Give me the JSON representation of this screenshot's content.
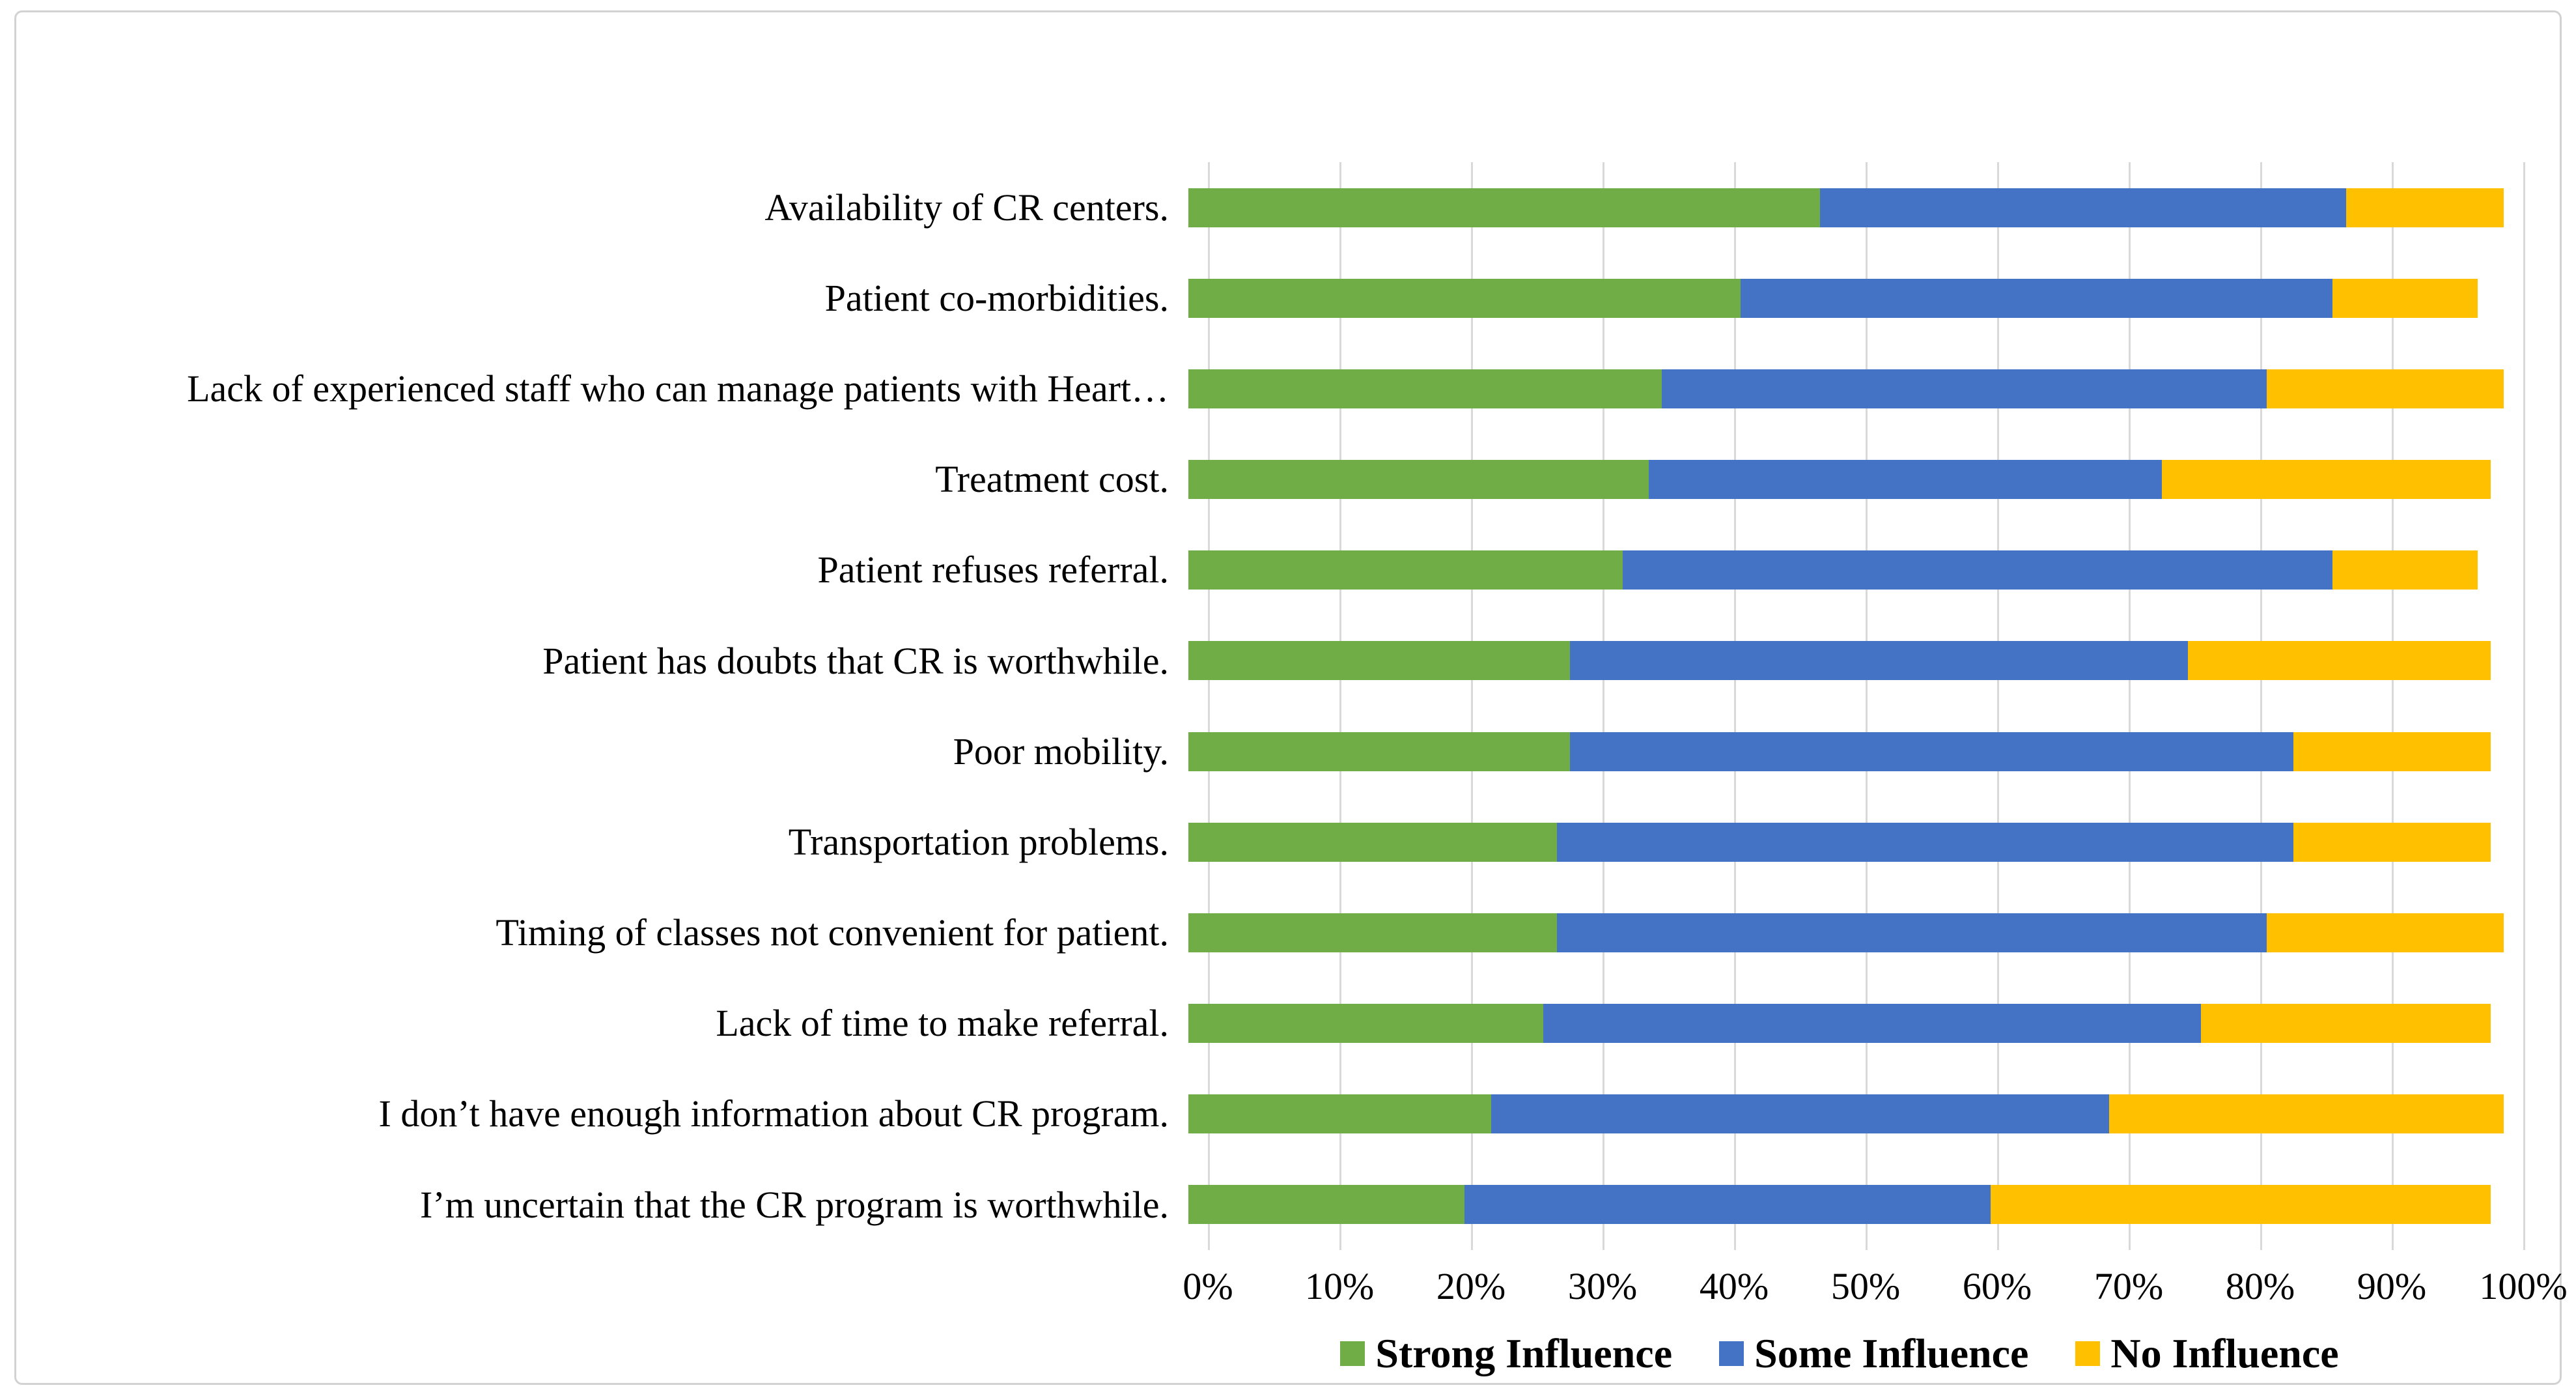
{
  "figure": {
    "background": "#ffffff",
    "border_color": "#d2d2d2"
  },
  "chart_data": {
    "type": "bar",
    "orientation": "horizontal",
    "stacked": true,
    "title": "",
    "xlabel": "",
    "ylabel": "",
    "categories": [
      "Availability of CR centers.",
      "Patient co-morbidities.",
      "Lack of experienced staff who can manage patients with Heart…",
      "Treatment cost.",
      "Patient refuses referral.",
      "Patient has doubts that CR is worthwhile.",
      "Poor mobility.",
      "Transportation problems.",
      "Timing of classes not convenient for patient.",
      "Lack of time to make referral.",
      "I don’t have enough information about CR program.",
      "I’m uncertain that the CR program is worthwhile."
    ],
    "series": [
      {
        "name": "Strong Influence",
        "color": "#70AD47",
        "values": [
          48,
          42,
          36,
          35,
          33,
          29,
          29,
          28,
          28,
          27,
          23,
          21
        ]
      },
      {
        "name": "Some Influence",
        "color": "#4472C4",
        "values": [
          40,
          45,
          46,
          39,
          54,
          47,
          55,
          56,
          54,
          50,
          47,
          40
        ]
      },
      {
        "name": "No Influence",
        "color": "#FFC000",
        "values": [
          12,
          11,
          18,
          25,
          11,
          23,
          15,
          15,
          18,
          22,
          30,
          38
        ]
      }
    ],
    "x_axis": {
      "range": [
        0,
        100
      ],
      "ticks": [
        "0%",
        "10%",
        "20%",
        "30%",
        "40%",
        "50%",
        "60%",
        "70%",
        "80%",
        "90%",
        "100%"
      ],
      "grid": true,
      "gridline_color": "#d9d9d9"
    },
    "legend": {
      "position": "bottom"
    }
  }
}
